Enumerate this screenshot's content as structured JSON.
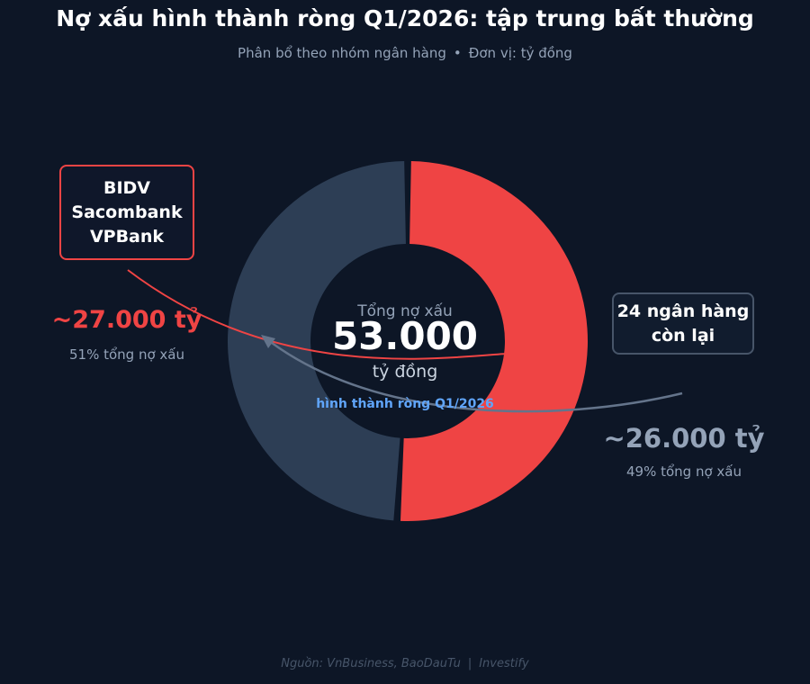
{
  "title": "Nợ xấu hình thành ròng Q1/2026: tập trung bất thường",
  "subtitle": {
    "text": "Phân bổ theo nhóm ngân hàng",
    "separator": "•",
    "unit": "Đơn vị: tỷ đồng"
  },
  "center": {
    "label": "Tổng nợ xấu",
    "value": "53.000",
    "unit": "tỷ đồng",
    "note": "hình thành ròng Q1/2026"
  },
  "left_group": {
    "banks": [
      "BIDV",
      "Sacombank",
      "VPBank"
    ],
    "value_label": "~27.000 tỷ",
    "share_label": "51% tổng nợ xấu"
  },
  "right_group": {
    "lines": [
      "24 ngân hàng",
      "còn lại"
    ],
    "value_label": "~26.000 tỷ",
    "share_label": "49% tổng nợ xấu"
  },
  "source": {
    "text": "Nguồn: VnBusiness, BaoDauTu",
    "separator": "|",
    "brand": "Investify"
  },
  "colors": {
    "background": "#0d1626",
    "accent_red": "#ef4444",
    "slate": "#2d3e55",
    "blue_note": "#60a5fa"
  },
  "chart_data": {
    "type": "pie",
    "variant": "donut",
    "slices": [
      {
        "name": "BIDV, Sacombank, VPBank",
        "value": 27000,
        "percent": 51,
        "color": "#ef4444"
      },
      {
        "name": "24 ngân hàng còn lại",
        "value": 26000,
        "percent": 49,
        "color": "#2d3e55"
      }
    ],
    "total": 53000,
    "unit": "tỷ đồng"
  }
}
